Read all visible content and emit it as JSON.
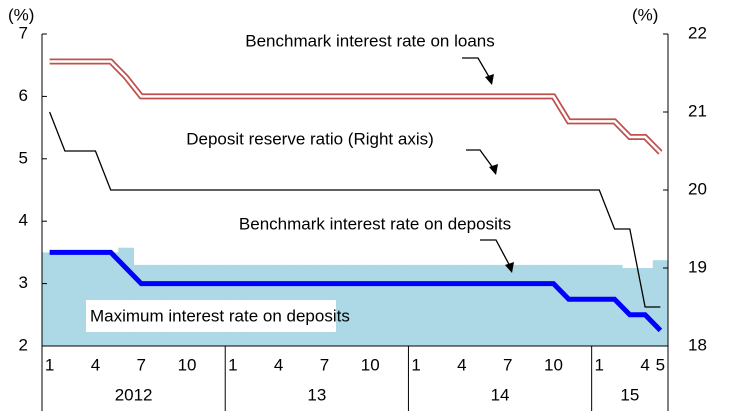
{
  "chart_data": {
    "type": "line",
    "left_unit": "(%)",
    "right_unit": "(%)",
    "categories": [
      "1",
      null,
      null,
      "4",
      null,
      null,
      "7",
      null,
      null,
      "10",
      null,
      null,
      "1",
      null,
      null,
      "4",
      null,
      null,
      "7",
      null,
      null,
      "10",
      null,
      null,
      "1",
      null,
      null,
      "4",
      null,
      null,
      "7",
      null,
      null,
      "10",
      null,
      null,
      "1",
      null,
      null,
      "4",
      "5"
    ],
    "years": [
      "2012",
      "13",
      "14",
      "15"
    ],
    "ylim": [
      2,
      7
    ],
    "yticks": [
      2,
      3,
      4,
      5,
      6,
      7
    ],
    "y2lim": [
      18,
      22
    ],
    "y2ticks": [
      18,
      19,
      20,
      21,
      22
    ],
    "series": [
      {
        "name": "Maximum interest rate on deposits",
        "kind": "area",
        "color": "#add8e6",
        "values": [
          3.5,
          3.5,
          3.5,
          3.5,
          3.5,
          3.575,
          3.3,
          3.3,
          3.3,
          3.3,
          3.3,
          3.3,
          3.3,
          3.3,
          3.3,
          3.3,
          3.3,
          3.3,
          3.3,
          3.3,
          3.3,
          3.3,
          3.3,
          3.3,
          3.3,
          3.3,
          3.3,
          3.3,
          3.3,
          3.3,
          3.3,
          3.3,
          3.3,
          3.3,
          3.3,
          3.3,
          3.3,
          3.3,
          3.25,
          3.25,
          3.375
        ]
      },
      {
        "name": "Benchmark interest rate on loans",
        "kind": "double",
        "color": "#c0504d",
        "values": [
          6.56,
          6.56,
          6.56,
          6.56,
          6.56,
          6.31,
          6.0,
          6.0,
          6.0,
          6.0,
          6.0,
          6.0,
          6.0,
          6.0,
          6.0,
          6.0,
          6.0,
          6.0,
          6.0,
          6.0,
          6.0,
          6.0,
          6.0,
          6.0,
          6.0,
          6.0,
          6.0,
          6.0,
          6.0,
          6.0,
          6.0,
          6.0,
          6.0,
          6.0,
          5.6,
          5.6,
          5.6,
          5.6,
          5.35,
          5.35,
          5.1
        ]
      },
      {
        "name": "Deposit reserve ratio (Right axis)",
        "kind": "thin",
        "axis": "y2",
        "color": "#000000",
        "values": [
          21.0,
          20.5,
          20.5,
          20.5,
          20.0,
          20.0,
          20.0,
          20.0,
          20.0,
          20.0,
          20.0,
          20.0,
          20.0,
          20.0,
          20.0,
          20.0,
          20.0,
          20.0,
          20.0,
          20.0,
          20.0,
          20.0,
          20.0,
          20.0,
          20.0,
          20.0,
          20.0,
          20.0,
          20.0,
          20.0,
          20.0,
          20.0,
          20.0,
          20.0,
          20.0,
          20.0,
          20.0,
          19.5,
          19.5,
          18.5,
          18.5
        ]
      },
      {
        "name": "Benchmark interest rate on deposits",
        "kind": "thick",
        "color": "#0000ff",
        "values": [
          3.5,
          3.5,
          3.5,
          3.5,
          3.5,
          3.25,
          3.0,
          3.0,
          3.0,
          3.0,
          3.0,
          3.0,
          3.0,
          3.0,
          3.0,
          3.0,
          3.0,
          3.0,
          3.0,
          3.0,
          3.0,
          3.0,
          3.0,
          3.0,
          3.0,
          3.0,
          3.0,
          3.0,
          3.0,
          3.0,
          3.0,
          3.0,
          3.0,
          3.0,
          2.75,
          2.75,
          2.75,
          2.75,
          2.5,
          2.5,
          2.25
        ]
      }
    ]
  }
}
